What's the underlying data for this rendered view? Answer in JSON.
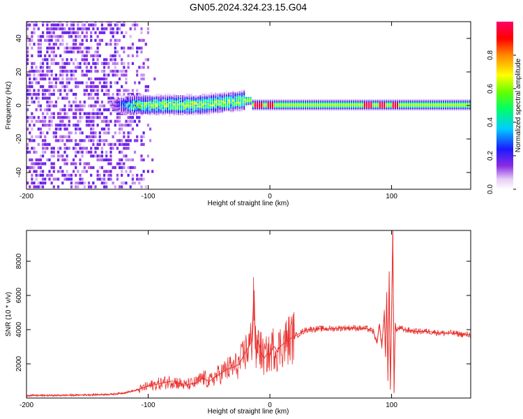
{
  "title": "GN05.2024.324.23.15.G04",
  "chart_data": [
    {
      "type": "heatmap",
      "name": "spectrogram",
      "xlabel": "Height of straight line (km)",
      "ylabel": "Frequency (Hz)",
      "xlim": [
        -200,
        165
      ],
      "ylim": [
        -50,
        50
      ],
      "xticks": [
        -200,
        -100,
        0,
        100
      ],
      "xtick_labels": [
        "-200",
        "-100",
        "0",
        "100"
      ],
      "yticks": [
        -40,
        -20,
        0,
        20,
        40
      ],
      "ytick_labels": [
        "-40",
        "-20",
        "0",
        "20",
        "40"
      ],
      "colorbar": {
        "label": "Normalized spectral amplitude",
        "range": [
          0,
          1
        ],
        "ticks": [
          0,
          0.2,
          0.4,
          0.6,
          0.8
        ],
        "tick_labels": [
          "0.0",
          "0.2",
          "0.4",
          "0.6",
          "0.8"
        ],
        "colormap": "rainbow (purple-blue-cyan-green-yellow-red-magenta)"
      },
      "features": {
        "noise_region_x": [
          -200,
          -110
        ],
        "signal_band_center_hz": 0,
        "signal_band_halfwidth_hz": 3,
        "peak_x": [
          -10,
          0,
          80,
          92,
          102
        ]
      }
    },
    {
      "type": "line",
      "name": "snr",
      "xlabel": "Height of straight line (km)",
      "ylabel": "SNR (10 * v/v)",
      "xlim": [
        -200,
        165
      ],
      "ylim": [
        0,
        9800
      ],
      "xticks": [
        -200,
        -100,
        0,
        100
      ],
      "xtick_labels": [
        "-200",
        "-100",
        "0",
        "100"
      ],
      "yticks": [
        2000,
        4000,
        6000,
        8000
      ],
      "ytick_labels": [
        "2000",
        "4000",
        "6000",
        "8000"
      ],
      "color": "#e8312e",
      "series": [
        {
          "x": [
            -200,
            -180,
            -160,
            -140,
            -130,
            -120,
            -110,
            -100,
            -90,
            -80,
            -70,
            -60,
            -55,
            -50,
            -45,
            -40,
            -35,
            -30,
            -25,
            -20,
            -15,
            -13,
            -12,
            -11,
            -10,
            -8,
            -5,
            -2,
            0,
            2,
            4,
            6,
            8,
            10,
            15,
            20,
            25,
            30,
            40,
            50,
            60,
            70,
            80,
            85,
            88,
            90,
            92,
            94,
            95,
            96,
            97,
            98,
            99,
            100,
            101,
            102,
            103,
            104,
            106,
            110,
            120,
            130,
            140,
            150,
            160,
            165
          ],
          "y": [
            150,
            150,
            170,
            200,
            220,
            300,
            450,
            700,
            850,
            1000,
            750,
            900,
            1200,
            950,
            1250,
            1450,
            1700,
            1800,
            2000,
            2700,
            3300,
            6300,
            3200,
            2300,
            3400,
            2900,
            2300,
            2600,
            2500,
            2900,
            3000,
            2700,
            3000,
            3100,
            3400,
            3600,
            3800,
            4000,
            4050,
            4050,
            4100,
            4100,
            4050,
            3900,
            3200,
            4300,
            3000,
            5000,
            2400,
            6200,
            1000,
            7400,
            500,
            5100,
            9800,
            300,
            4400,
            3900,
            4100,
            4000,
            3900,
            3900,
            3800,
            3800,
            3700,
            3700
          ]
        }
      ]
    }
  ]
}
